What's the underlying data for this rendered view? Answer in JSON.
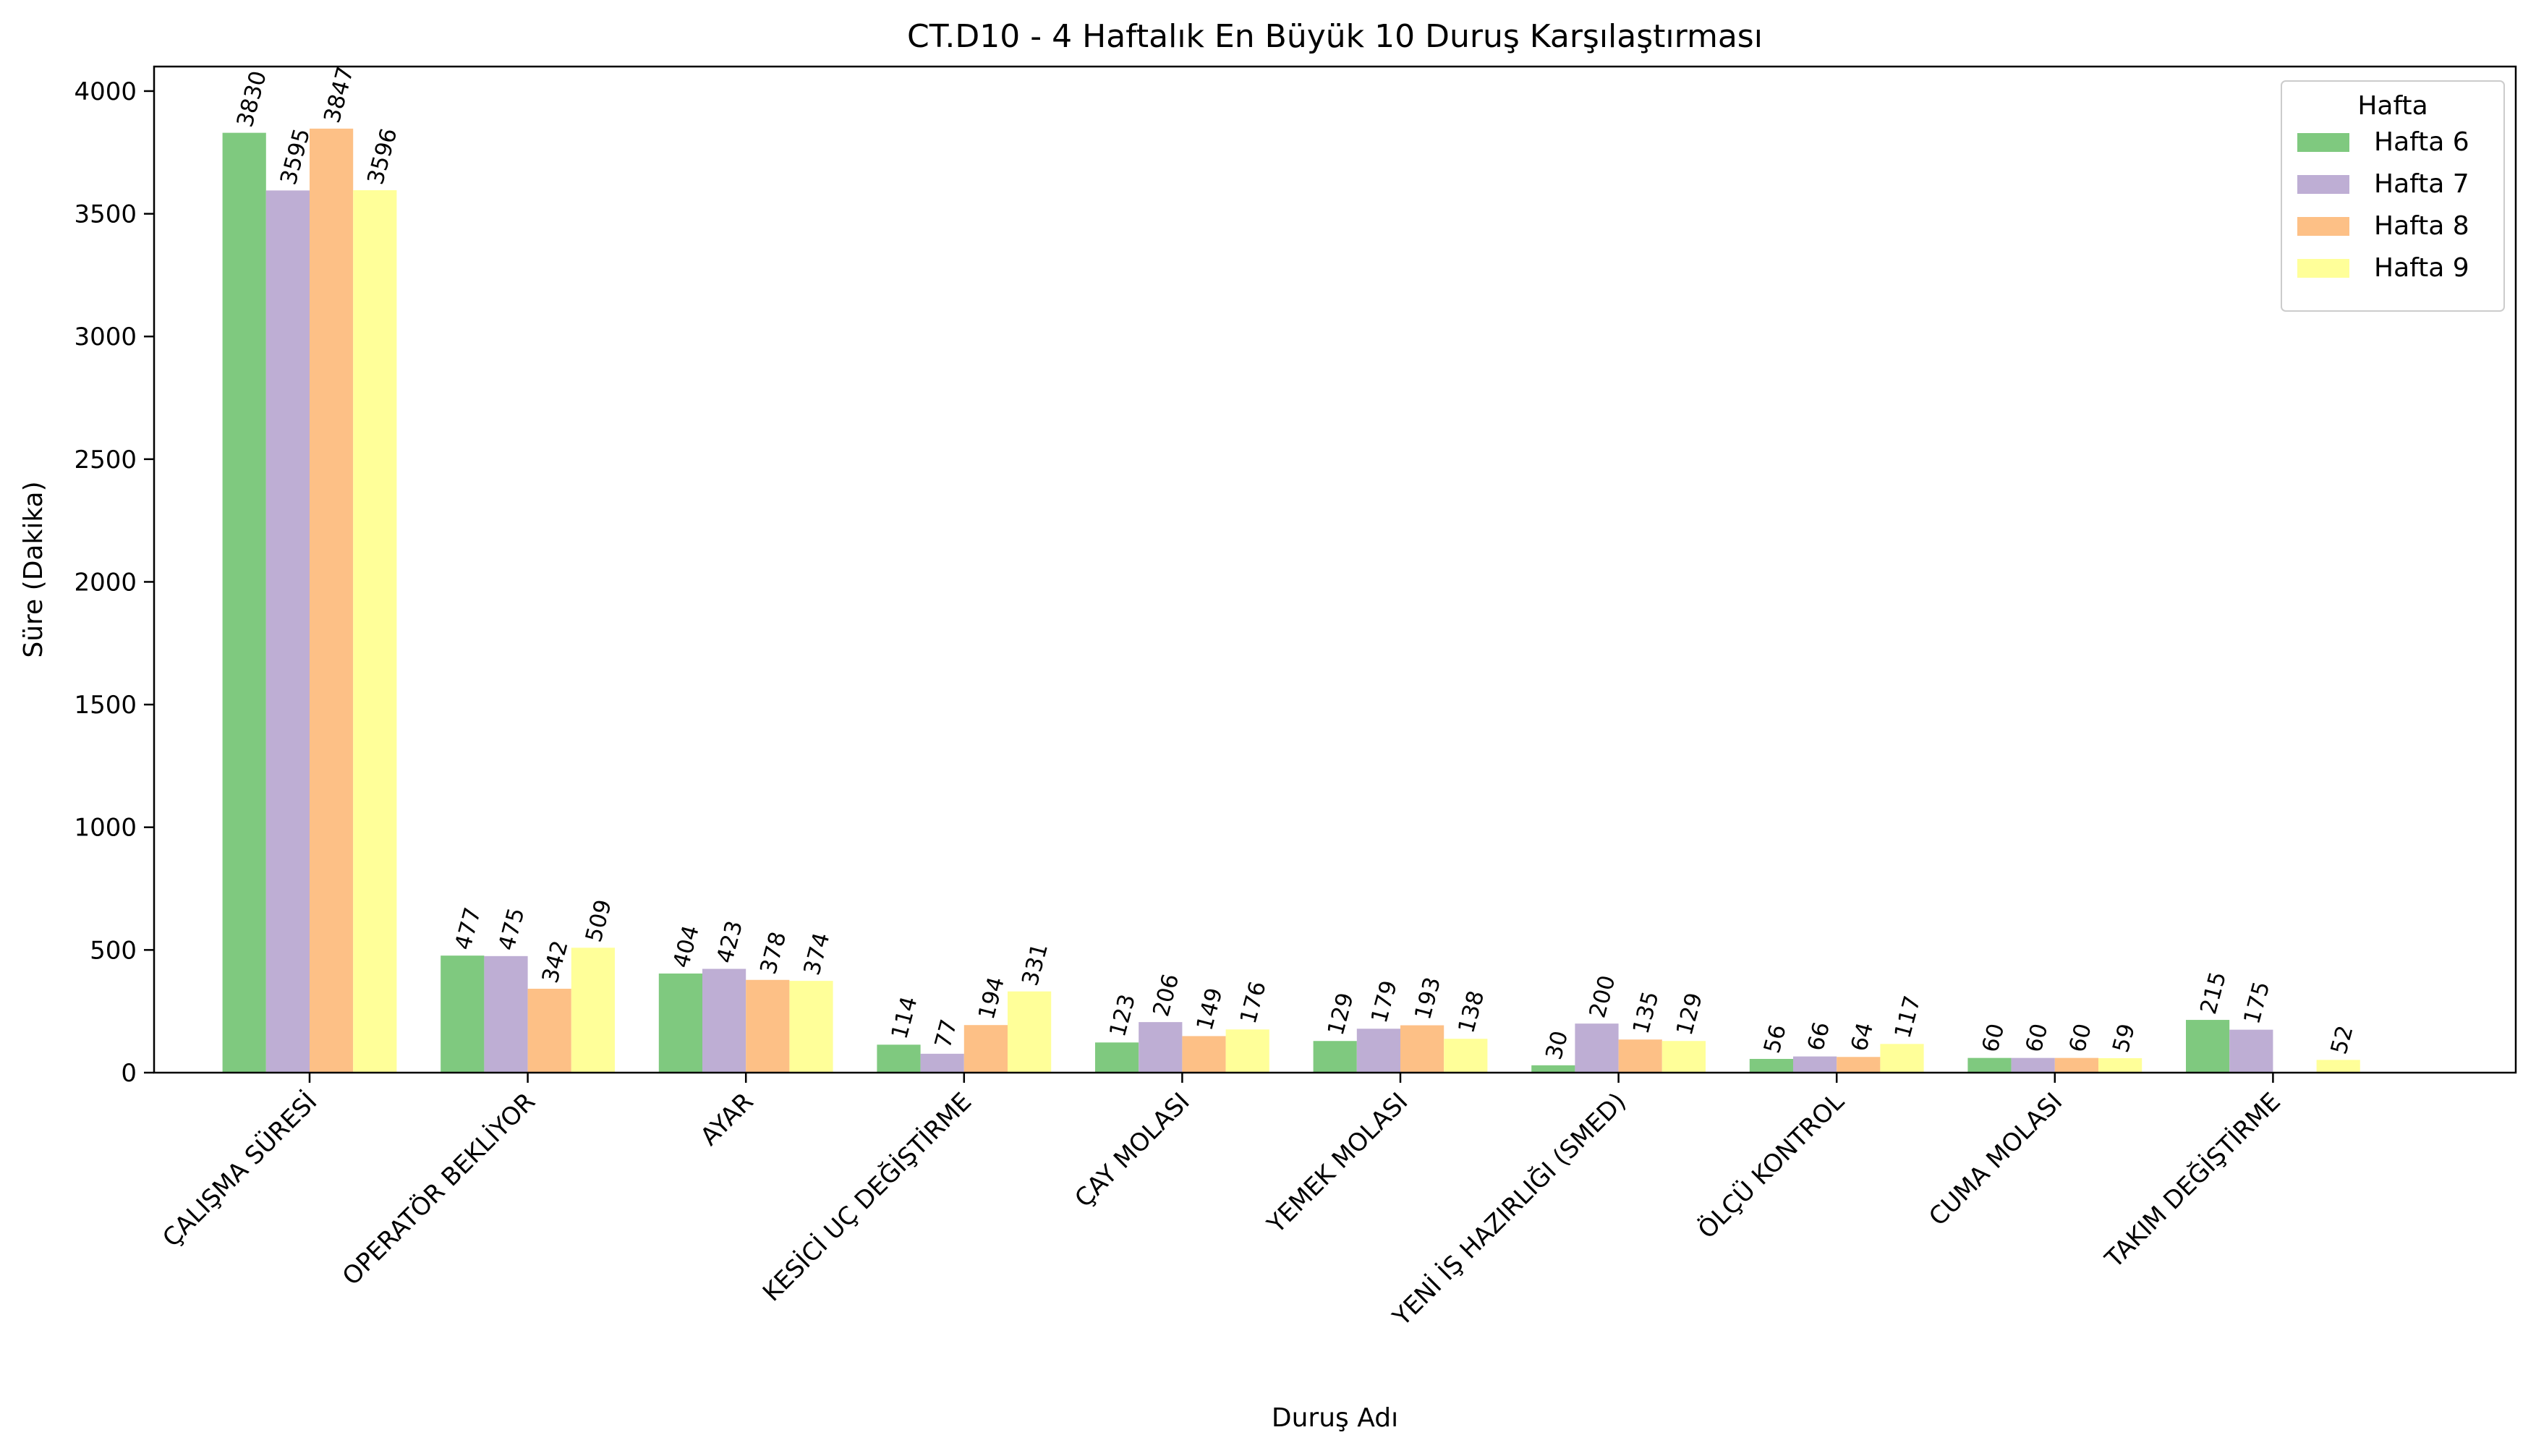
{
  "chart_data": {
    "type": "bar",
    "title": "CT.D10 - 4 Haftalık En Büyük 10 Duruş Karşılaştırması",
    "xlabel": "Duruş Adı",
    "ylabel": "Süre (Dakika)",
    "ylim": [
      0,
      4100
    ],
    "yticks": [
      0,
      500,
      1000,
      1500,
      2000,
      2500,
      3000,
      3500,
      4000
    ],
    "grid": false,
    "legend_title": "Hafta",
    "legend_position": "top-right",
    "categories": [
      "ÇALIŞMA SÜRESİ",
      "OPERATÖR BEKLİYOR",
      "AYAR",
      "KESİCİ UÇ DEĞİŞTİRME",
      "ÇAY MOLASI",
      "YEMEK MOLASI",
      "YENİ İŞ HAZIRLIĞI (SMED)",
      "ÖLÇÜ KONTROL",
      "CUMA  MOLASI",
      "TAKIM DEĞİŞTİRME"
    ],
    "series": [
      {
        "name": "Hafta 6",
        "color": "#7fc97f",
        "values": [
          3830,
          477,
          404,
          114,
          123,
          129,
          30,
          56,
          60,
          215
        ]
      },
      {
        "name": "Hafta 7",
        "color": "#beaed4",
        "values": [
          3595,
          475,
          423,
          77,
          206,
          179,
          200,
          66,
          60,
          175
        ]
      },
      {
        "name": "Hafta 8",
        "color": "#fdc086",
        "values": [
          3847,
          342,
          378,
          194,
          149,
          193,
          135,
          64,
          60,
          null
        ]
      },
      {
        "name": "Hafta 9",
        "color": "#ffff99",
        "values": [
          3596,
          509,
          374,
          331,
          176,
          138,
          129,
          117,
          59,
          52
        ]
      }
    ]
  }
}
